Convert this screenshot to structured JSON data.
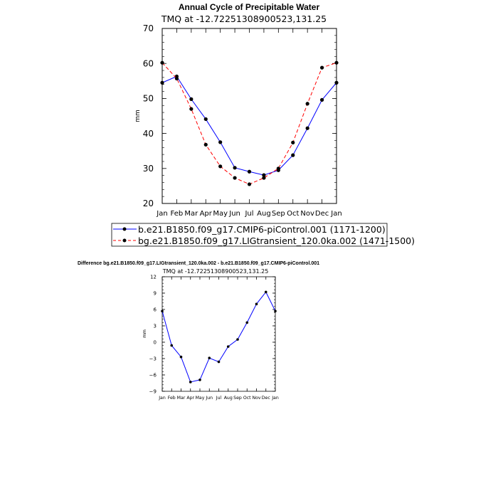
{
  "chart_data": [
    {
      "type": "line",
      "title": "Annual Cycle of Precipitable Water",
      "subtitle": "TMQ at -12.72251308900523,131.25",
      "xlabel": "",
      "ylabel": "mm",
      "ylim": [
        20,
        70
      ],
      "yticks": [
        "20",
        "30",
        "40",
        "50",
        "60",
        "70"
      ],
      "categories": [
        "Jan",
        "Feb",
        "Mar",
        "Apr",
        "May",
        "Jun",
        "Jul",
        "Aug",
        "Sep",
        "Oct",
        "Nov",
        "Dec",
        "Jan"
      ],
      "series": [
        {
          "name": "b.e21.B1850.f09_g17.CMIP6-piControl.001 (1171-1200)",
          "color": "#0000ff",
          "dash": "solid",
          "values": [
            54.5,
            56.3,
            49.8,
            44.1,
            37.5,
            30.2,
            29.1,
            28.1,
            29.5,
            33.8,
            41.5,
            49.6,
            54.5
          ]
        },
        {
          "name": "bg.e21.B1850.f09_g17.LIGtransient_120.0ka.002 (1471-1500)",
          "color": "#ff0000",
          "dash": "dashed",
          "values": [
            60.2,
            55.7,
            47.0,
            36.8,
            30.6,
            27.3,
            25.5,
            27.3,
            30.0,
            37.4,
            48.5,
            58.8,
            60.2
          ]
        }
      ]
    },
    {
      "type": "line",
      "title": "Difference bg.e21.B1850.f09_g17.LIGtransient_120.0ka.002 - b.e21.B1850.f09_g17.CMIP6-piControl.001",
      "subtitle": "TMQ at -12.72251308900523,131.25",
      "xlabel": "",
      "ylabel": "mm",
      "ylim": [
        -9,
        12
      ],
      "yticks": [
        "-9",
        "-6",
        "-3",
        "0",
        "3",
        "6",
        "9",
        "12"
      ],
      "categories": [
        "Jan",
        "Feb",
        "Mar",
        "Apr",
        "May",
        "Jun",
        "Jul",
        "Aug",
        "Sep",
        "Oct",
        "Nov",
        "Dec",
        "Jan"
      ],
      "series": [
        {
          "name": "Difference",
          "color": "#0000ff",
          "dash": "solid",
          "values": [
            5.7,
            -0.6,
            -2.7,
            -7.3,
            -6.9,
            -2.9,
            -3.6,
            -0.8,
            0.5,
            3.6,
            7.0,
            9.2,
            5.7
          ]
        }
      ]
    }
  ]
}
